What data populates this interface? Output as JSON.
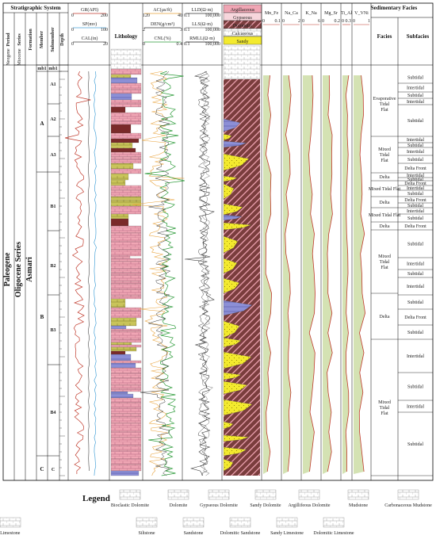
{
  "header": {
    "strat_system": "Stratigraphic System",
    "sed_facies": "Sedimentary Facies",
    "period": "Period",
    "series": "Series",
    "formation": "Formation",
    "member": "Member",
    "submember": "Submember",
    "depth": "Depth",
    "lithology": "Lithology",
    "facies": "Facies",
    "subfacies": "Subfacies"
  },
  "log_headers": {
    "track1": [
      "GR(API)",
      "SP(mv)",
      "CAL(in)"
    ],
    "track1_ranges": [
      [
        "0",
        "200"
      ],
      [
        "0",
        "100"
      ],
      [
        "0",
        "20"
      ]
    ],
    "track2": [
      "AC(µs/ft)",
      "DEN(g/cm³)",
      "CNL(%)"
    ],
    "track2_ranges": [
      [
        "120",
        "40"
      ],
      [
        "2",
        "3"
      ],
      [
        "0",
        "0.4"
      ]
    ],
    "track3": [
      "LLD(Ω·m)",
      "LLS(Ω·m)",
      "RMLL(Ω·m)"
    ],
    "track3_ranges": [
      [
        "0.1",
        "100,000"
      ],
      [
        "0.1",
        "100,000"
      ],
      [
        "0.1",
        "100,000"
      ]
    ]
  },
  "composition_legend": [
    "Argillaceous",
    "Gypseous",
    "Dolomitic",
    "Calcareous",
    "Sandy"
  ],
  "ratio_tracks": [
    {
      "name": "Mn_Fe",
      "range": [
        "0",
        "0.1"
      ]
    },
    {
      "name": "Na_Ca",
      "range": [
        "0",
        "2"
      ]
    },
    {
      "name": "K_Na",
      "range": [
        "0",
        "6"
      ]
    },
    {
      "name": "Mg_Sr",
      "range": [
        "0",
        "0.2"
      ]
    },
    {
      "name": "Ti_Al",
      "range": [
        "0",
        "0.3"
      ]
    },
    {
      "name": "V_VNi",
      "range": [
        "0",
        "1"
      ]
    }
  ],
  "strat": {
    "period": "Paleogene",
    "series": "Oligocene Series",
    "formation": "Asmari",
    "era_top": "Neogene",
    "series_top": "Miocene",
    "mb1": "mb1",
    "members": [
      "A",
      "B",
      "C"
    ],
    "submembers": [
      "A1",
      "A2",
      "A3",
      "B1",
      "B2",
      "B3",
      "B4",
      "C"
    ]
  },
  "facies": [
    "Evaporative Tidal Flat",
    "Mixed Tidal Flat",
    "Delta",
    "Mixed Tidal Flat",
    "Delta",
    "Mixed Tidal Flat",
    "Delta",
    "Mixed Tidal Flat",
    "Delta",
    "Mixed Tidal Flat"
  ],
  "subfacies": [
    "Subtidal",
    "Intertidal",
    "Subtidal",
    "Intertidal",
    "Subtidal",
    "Intertidal",
    "Subtidal",
    "Intertidal",
    "Subtidal",
    "Delta Front",
    "Intertidal",
    "Subtidal",
    "Delta Front",
    "Intertidal",
    "Subtidal",
    "Delta Front",
    "Subtidal",
    "Intertidal",
    "Subtidal",
    "Delta Front",
    "Subtidal",
    "Intertidal",
    "Subtidal",
    "Intertidal",
    "Subtidal",
    "Delta Front",
    "Subtidal",
    "Intertidal",
    "Subtidal",
    "Intertidal",
    "Subtidal"
  ],
  "legend": {
    "title": "Legend",
    "items": [
      "Bioclastic Dolomite",
      "Dolomite",
      "Gypseous Dolomite",
      "Sandy Dolomite",
      "Argillifeous Dolomite",
      "Mudstone",
      "Carbonaceous Mudstone",
      "Siltstone",
      "Sandstone",
      "Dolomitic Sandstone",
      "Sandy Limestone",
      "Dolomitic Limestone",
      "Bioclastic Limestone"
    ]
  },
  "colors": {
    "pink": "#f0a6b4",
    "yellow": "#f3ea2e",
    "green_fill": "#d4e2b3",
    "curve_red": "#c0392b",
    "curve_blue": "#4aa3d8",
    "curve_orange": "#e8a23a",
    "curve_green": "#2e9c3b"
  }
}
